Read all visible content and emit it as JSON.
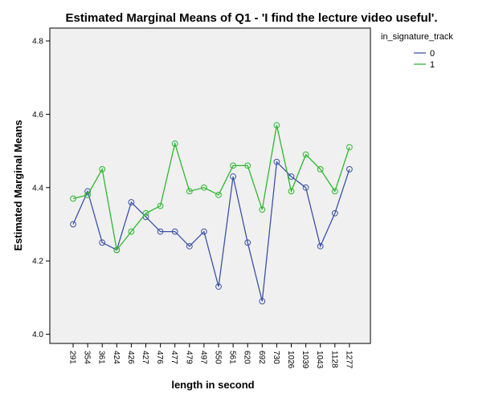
{
  "chart_data": {
    "type": "line",
    "title": "Estimated Marginal Means of Q1 - 'I find the lecture video useful'.",
    "xlabel": "length in second",
    "ylabel": "Estimated Marginal Means",
    "categories": [
      "291",
      "354",
      "361",
      "424",
      "426",
      "427",
      "476",
      "477",
      "479",
      "497",
      "550",
      "561",
      "620",
      "692",
      "730",
      "1026",
      "1039",
      "1043",
      "1128",
      "1277"
    ],
    "ylim": [
      3.975,
      4.835
    ],
    "yticks": [
      4.0,
      4.2,
      4.4,
      4.6,
      4.8
    ],
    "ytick_labels": [
      "4.0",
      "4.2",
      "4.4",
      "4.6",
      "4.8"
    ],
    "grid": false,
    "legend": {
      "title": "in_signature_track",
      "placement": "right-outside-top"
    },
    "series": [
      {
        "name": "0",
        "color": "#3b52a8",
        "values": [
          4.3,
          4.39,
          4.25,
          4.23,
          4.36,
          4.32,
          4.28,
          4.28,
          4.24,
          4.28,
          4.13,
          4.43,
          4.25,
          4.09,
          4.47,
          4.43,
          4.4,
          4.24,
          4.33,
          4.45
        ]
      },
      {
        "name": "1",
        "color": "#2eb82e",
        "values": [
          4.37,
          4.38,
          4.45,
          4.23,
          4.28,
          4.33,
          4.35,
          4.52,
          4.39,
          4.4,
          4.38,
          4.46,
          4.46,
          4.34,
          4.57,
          4.39,
          4.49,
          4.45,
          4.39,
          4.51
        ]
      }
    ],
    "plot_background": "#f0f0f0"
  }
}
